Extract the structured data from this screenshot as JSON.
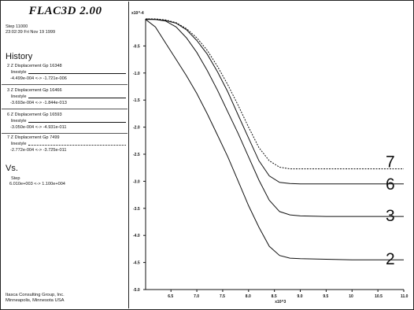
{
  "app_title": "FLAC3D 2.00",
  "step_line": "Step 11000",
  "date_line": "23:02:39 Fri Nov 19 1999",
  "history_heading": "History",
  "linestyle_label": "linestyle",
  "histories": [
    {
      "name": "2 Z Displacement Gp 16348",
      "range": "-4.499e-004 <-> -1.721e-006"
    },
    {
      "name": "3 Z Displacement Gp 16466",
      "range": "-3.693e-004 <-> -1.844e-013"
    },
    {
      "name": "6 Z Displacement Gp 16593",
      "range": "-3.050e-004 <-> -4.931e-011"
    },
    {
      "name": "7 Z Displacement Gp 7499",
      "range": "-2.772e-004 <-> -3.725e-011"
    }
  ],
  "vs_heading": "Vs.",
  "vs_label": "Step",
  "vs_range": "6.010e+003 <-> 1.100e+004",
  "footer_line1": "Itasca Consulting Group, Inc.",
  "footer_line2": "Minneapolis, Minnesota USA",
  "chart_data": {
    "type": "line",
    "title": "",
    "xlabel": "x10^3",
    "ylabel": "",
    "y_multiplier_label": "x10^-4",
    "xlim": [
      6.01,
      11.0
    ],
    "ylim": [
      -5.0,
      0.0
    ],
    "x_ticks": [
      6.5,
      7.0,
      7.5,
      8.0,
      8.5,
      9.0,
      9.5,
      10.0,
      10.5,
      11.0
    ],
    "x_tick_labels": [
      "6.5",
      "7.0",
      "7.5",
      "8.0",
      "8.5",
      "9.0",
      "9.5",
      "10",
      "10.5",
      "11.0"
    ],
    "y_ticks": [
      -0.5,
      -1.0,
      -1.5,
      -2.0,
      -2.5,
      -3.0,
      -3.5,
      -4.0,
      -4.5,
      -5.0
    ],
    "y_tick_labels": [
      "-0.5",
      "-1.0",
      "-1.5",
      "-2.0",
      "-2.5",
      "-3.0",
      "-3.5",
      "-4.0",
      "-4.5",
      "-5.0"
    ],
    "grid": false,
    "series": [
      {
        "name": "2",
        "x": [
          6.01,
          6.2,
          6.4,
          6.6,
          6.8,
          7.0,
          7.2,
          7.4,
          7.6,
          7.8,
          8.0,
          8.2,
          8.4,
          8.6,
          8.8,
          9.0,
          9.5,
          10.0,
          10.5,
          11.0
        ],
        "y": [
          -0.01,
          -0.15,
          -0.45,
          -0.75,
          -1.05,
          -1.38,
          -1.75,
          -2.15,
          -2.55,
          -3.0,
          -3.45,
          -3.85,
          -4.2,
          -4.37,
          -4.42,
          -4.43,
          -4.44,
          -4.45,
          -4.45,
          -4.45
        ]
      },
      {
        "name": "3",
        "x": [
          6.01,
          6.2,
          6.4,
          6.6,
          6.8,
          7.0,
          7.2,
          7.4,
          7.6,
          7.8,
          8.0,
          8.2,
          8.4,
          8.6,
          8.8,
          9.0,
          9.5,
          10.0,
          10.5,
          11.0
        ],
        "y": [
          -0.01,
          -0.01,
          -0.04,
          -0.15,
          -0.35,
          -0.62,
          -0.95,
          -1.32,
          -1.72,
          -2.12,
          -2.55,
          -2.98,
          -3.35,
          -3.56,
          -3.62,
          -3.64,
          -3.65,
          -3.65,
          -3.65,
          -3.65
        ]
      },
      {
        "name": "6",
        "x": [
          6.01,
          6.2,
          6.4,
          6.6,
          6.8,
          7.0,
          7.2,
          7.4,
          7.6,
          7.8,
          8.0,
          8.2,
          8.4,
          8.6,
          8.8,
          9.0,
          9.5,
          10.0,
          10.5,
          11.0
        ],
        "y": [
          0.0,
          -0.01,
          -0.03,
          -0.08,
          -0.2,
          -0.4,
          -0.65,
          -0.98,
          -1.35,
          -1.78,
          -2.2,
          -2.62,
          -2.9,
          -3.02,
          -3.04,
          -3.05,
          -3.05,
          -3.05,
          -3.05,
          -3.05
        ]
      },
      {
        "name": "7",
        "x": [
          6.01,
          6.2,
          6.4,
          6.6,
          6.8,
          7.0,
          7.2,
          7.4,
          7.6,
          7.8,
          8.0,
          8.2,
          8.4,
          8.6,
          8.8,
          9.0,
          9.5,
          10.0,
          10.5,
          11.0
        ],
        "y": [
          0.0,
          0.0,
          -0.02,
          -0.07,
          -0.18,
          -0.35,
          -0.58,
          -0.88,
          -1.22,
          -1.6,
          -2.0,
          -2.38,
          -2.62,
          -2.74,
          -2.77,
          -2.77,
          -2.77,
          -2.77,
          -2.77,
          -2.77
        ]
      }
    ]
  }
}
